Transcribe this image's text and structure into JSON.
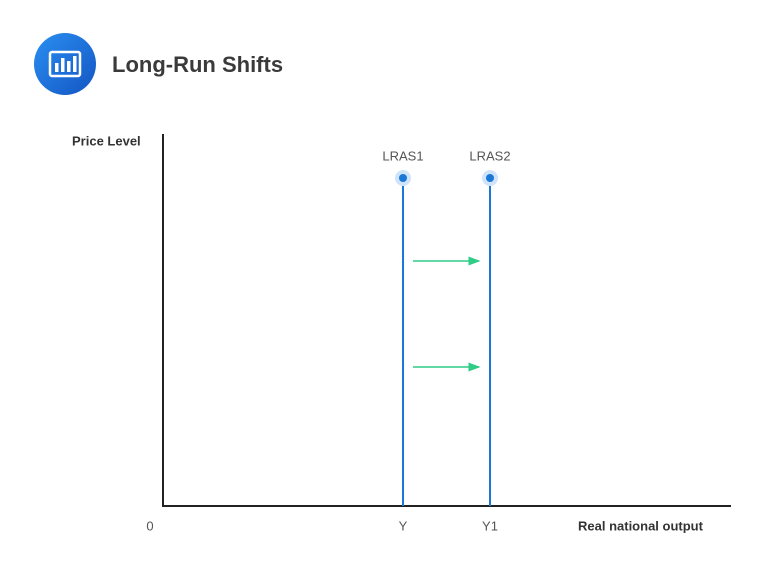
{
  "header": {
    "title": "Long-Run Shifts"
  },
  "axes": {
    "y_label": "Price Level",
    "x_label": "Real national output",
    "origin": "0"
  },
  "curves": [
    {
      "label": "LRAS1",
      "x_label": "Y"
    },
    {
      "label": "LRAS2",
      "x_label": "Y1"
    }
  ]
}
